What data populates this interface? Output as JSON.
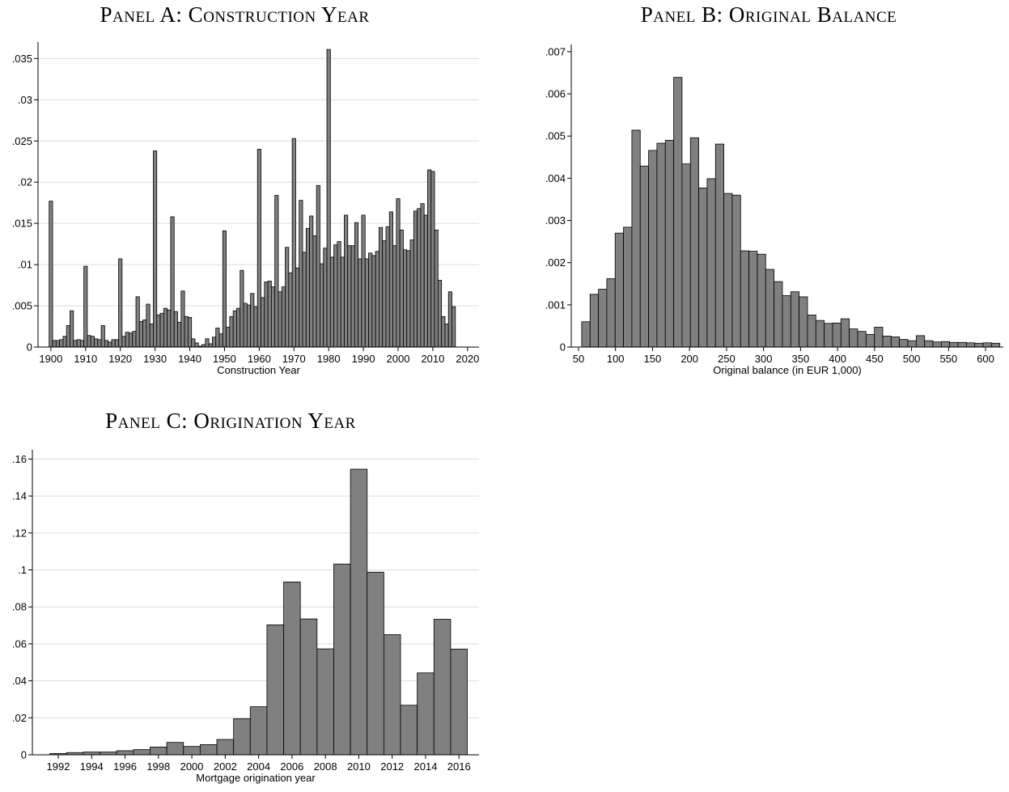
{
  "chart_data": [
    {
      "type": "histogram",
      "title": "Panel A: Construction Year",
      "x_label": "Construction Year",
      "bins": [
        1899.5,
        1900.5,
        1901.5,
        1902.5,
        1903.5,
        1904.5,
        1905.5,
        1906.5,
        1907.5,
        1908.5,
        1909.5,
        1910.5,
        1911.5,
        1912.5,
        1913.5,
        1914.5,
        1915.5,
        1916.5,
        1917.5,
        1918.5,
        1919.5,
        1920.5,
        1921.5,
        1922.5,
        1923.5,
        1924.5,
        1925.5,
        1926.5,
        1927.5,
        1928.5,
        1929.5,
        1930.5,
        1931.5,
        1932.5,
        1933.5,
        1934.5,
        1935.5,
        1936.5,
        1937.5,
        1938.5,
        1939.5,
        1940.5,
        1941.5,
        1942.5,
        1943.5,
        1944.5,
        1945.5,
        1946.5,
        1947.5,
        1948.5,
        1949.5,
        1950.5,
        1951.5,
        1952.5,
        1953.5,
        1954.5,
        1955.5,
        1956.5,
        1957.5,
        1958.5,
        1959.5,
        1960.5,
        1961.5,
        1962.5,
        1963.5,
        1964.5,
        1965.5,
        1966.5,
        1967.5,
        1968.5,
        1969.5,
        1970.5,
        1971.5,
        1972.5,
        1973.5,
        1974.5,
        1975.5,
        1976.5,
        1977.5,
        1978.5,
        1979.5,
        1980.5,
        1981.5,
        1982.5,
        1983.5,
        1984.5,
        1985.5,
        1986.5,
        1987.5,
        1988.5,
        1989.5,
        1990.5,
        1991.5,
        1992.5,
        1993.5,
        1994.5,
        1995.5,
        1996.5,
        1997.5,
        1998.5,
        1999.5,
        2000.5,
        2001.5,
        2002.5,
        2003.5,
        2004.5,
        2005.5,
        2006.5,
        2007.5,
        2008.5,
        2009.5,
        2010.5,
        2011.5,
        2012.5,
        2013.5,
        2014.5,
        2015.5,
        2016.5
      ],
      "values": [
        0.0177,
        0.0008,
        0.0008,
        0.0009,
        0.0013,
        0.0026,
        0.0044,
        0.0008,
        0.0009,
        0.0008,
        0.0098,
        0.0014,
        0.0013,
        0.001,
        0.0009,
        0.0026,
        0.0008,
        0.0006,
        0.0009,
        0.0009,
        0.0107,
        0.0013,
        0.0018,
        0.0017,
        0.0019,
        0.0061,
        0.0031,
        0.0033,
        0.0052,
        0.0028,
        0.0238,
        0.0039,
        0.0041,
        0.0047,
        0.0045,
        0.0158,
        0.0043,
        0.003,
        0.0068,
        0.0037,
        0.0036,
        0.001,
        0.0005,
        0.0001,
        0.0003,
        0.001,
        0.0004,
        0.0012,
        0.0023,
        0.0016,
        0.0141,
        0.0024,
        0.0037,
        0.0044,
        0.0047,
        0.0093,
        0.0053,
        0.0051,
        0.0065,
        0.0049,
        0.024,
        0.006,
        0.0079,
        0.008,
        0.0073,
        0.0184,
        0.0067,
        0.0073,
        0.0121,
        0.009,
        0.0253,
        0.0096,
        0.0178,
        0.0115,
        0.0144,
        0.0159,
        0.0135,
        0.0196,
        0.0101,
        0.012,
        0.0361,
        0.0109,
        0.0124,
        0.0128,
        0.0109,
        0.016,
        0.0123,
        0.0123,
        0.0151,
        0.0107,
        0.016,
        0.0107,
        0.0114,
        0.0111,
        0.0116,
        0.0145,
        0.0129,
        0.0146,
        0.0164,
        0.0123,
        0.018,
        0.0142,
        0.0118,
        0.0117,
        0.013,
        0.0165,
        0.0168,
        0.0174,
        0.016,
        0.0215,
        0.0213,
        0.0142,
        0.0081,
        0.0037,
        0.0028,
        0.0067,
        0.0049
      ],
      "color": "#808080",
      "grid": true,
      "xlim": [
        1896.3,
        2023.3
      ],
      "xticks": [
        1900,
        1910,
        1920,
        1930,
        1940,
        1950,
        1960,
        1970,
        1980,
        1990,
        2000,
        2010,
        2020
      ],
      "ylim": [
        0,
        0.037
      ],
      "yticks": [
        0,
        {
          "value": 0.005,
          "label": ".005"
        },
        {
          "value": 0.01,
          "label": ".01"
        },
        {
          "value": 0.015,
          "label": ".015"
        },
        {
          "value": 0.02,
          "label": ".02"
        },
        {
          "value": 0.025,
          "label": ".025"
        },
        {
          "value": 0.03,
          "label": ".03"
        },
        {
          "value": 0.035,
          "label": ".035"
        }
      ]
    },
    {
      "type": "histogram",
      "title": "Panel B: Original Balance",
      "x_label": "Original balance (in EUR 1,000)",
      "bins": [
        54.3,
        65.6,
        76.9,
        88.2,
        99.5,
        110.8,
        122.1,
        133.4,
        144.7,
        156,
        167.3,
        178.6,
        189.9,
        201.2,
        212.5,
        223.8,
        235.1,
        246.4,
        257.7,
        269,
        280.3,
        291.6,
        302.9,
        314.2,
        325.5,
        336.8,
        348.1,
        359.4,
        370.7,
        382,
        393.3,
        404.6,
        415.9,
        427.2,
        438.5,
        449.8,
        461.1,
        472.4,
        483.7,
        495,
        506.3,
        517.6,
        528.9,
        540.2,
        551.5,
        562.8,
        574.1,
        585.4,
        596.7,
        608,
        619.3
      ],
      "values": [
        0.0006,
        0.00125,
        0.00137,
        0.00162,
        0.0027,
        0.00284,
        0.00514,
        0.00429,
        0.00466,
        0.00483,
        0.0049,
        0.00639,
        0.00434,
        0.00496,
        0.00377,
        0.00399,
        0.00481,
        0.00364,
        0.0036,
        0.00228,
        0.00227,
        0.0022,
        0.00184,
        0.00155,
        0.00122,
        0.00131,
        0.00119,
        0.00076,
        0.00063,
        0.00056,
        0.00057,
        0.00067,
        0.00043,
        0.00037,
        0.0003,
        0.00047,
        0.00026,
        0.00024,
        0.00018,
        0.00015,
        0.00027,
        0.00015,
        0.00012,
        0.00013,
        0.00011,
        0.00011,
        0.0001,
        9e-05,
        0.0001,
        9e-05
      ],
      "color": "#808080",
      "grid": false,
      "xlim": [
        40.2,
        624
      ],
      "xticks": [
        50,
        100,
        150,
        200,
        250,
        300,
        350,
        400,
        450,
        500,
        550,
        600
      ],
      "ylim": [
        0,
        0.00717
      ],
      "yticks": [
        0,
        {
          "value": 0.001,
          "label": ".001"
        },
        {
          "value": 0.002,
          "label": ".002"
        },
        {
          "value": 0.003,
          "label": ".003"
        },
        {
          "value": 0.004,
          "label": ".004"
        },
        {
          "value": 0.005,
          "label": ".005"
        },
        {
          "value": 0.006,
          "label": ".006"
        },
        {
          "value": 0.007,
          "label": ".007"
        }
      ]
    },
    {
      "type": "histogram",
      "title": "Panel C: Origination Year",
      "x_label": "Mortgage origination year",
      "bins": [
        1991.5,
        1992.5,
        1993.5,
        1994.5,
        1995.5,
        1996.5,
        1997.5,
        1998.5,
        1999.5,
        2000.5,
        2001.5,
        2002.5,
        2003.5,
        2004.5,
        2005.5,
        2006.5,
        2007.5,
        2008.5,
        2009.5,
        2010.5,
        2011.5,
        2012.5,
        2013.5,
        2014.5,
        2015.5,
        2016.5
      ],
      "values": [
        0.0007,
        0.0012,
        0.0015,
        0.0015,
        0.0022,
        0.0028,
        0.0042,
        0.0067,
        0.0045,
        0.0055,
        0.0083,
        0.0195,
        0.026,
        0.0703,
        0.0935,
        0.0735,
        0.0573,
        0.1032,
        0.1545,
        0.0988,
        0.065,
        0.0268,
        0.0443,
        0.0733,
        0.0572
      ],
      "color": "#808080",
      "grid": true,
      "xlim": [
        1990.45,
        2017.2
      ],
      "xticks": [
        1992,
        1994,
        1996,
        1998,
        2000,
        2002,
        2004,
        2006,
        2008,
        2010,
        2012,
        2014,
        2016
      ],
      "ylim": [
        0,
        0.165
      ],
      "yticks": [
        0,
        {
          "value": 0.02,
          "label": ".02"
        },
        {
          "value": 0.04,
          "label": ".04"
        },
        {
          "value": 0.06,
          "label": ".06"
        },
        {
          "value": 0.08,
          "label": ".08"
        },
        {
          "value": 0.1,
          "label": ".1"
        },
        {
          "value": 0.12,
          "label": ".12"
        },
        {
          "value": 0.14,
          "label": ".14"
        },
        {
          "value": 0.16,
          "label": ".16"
        }
      ]
    }
  ]
}
